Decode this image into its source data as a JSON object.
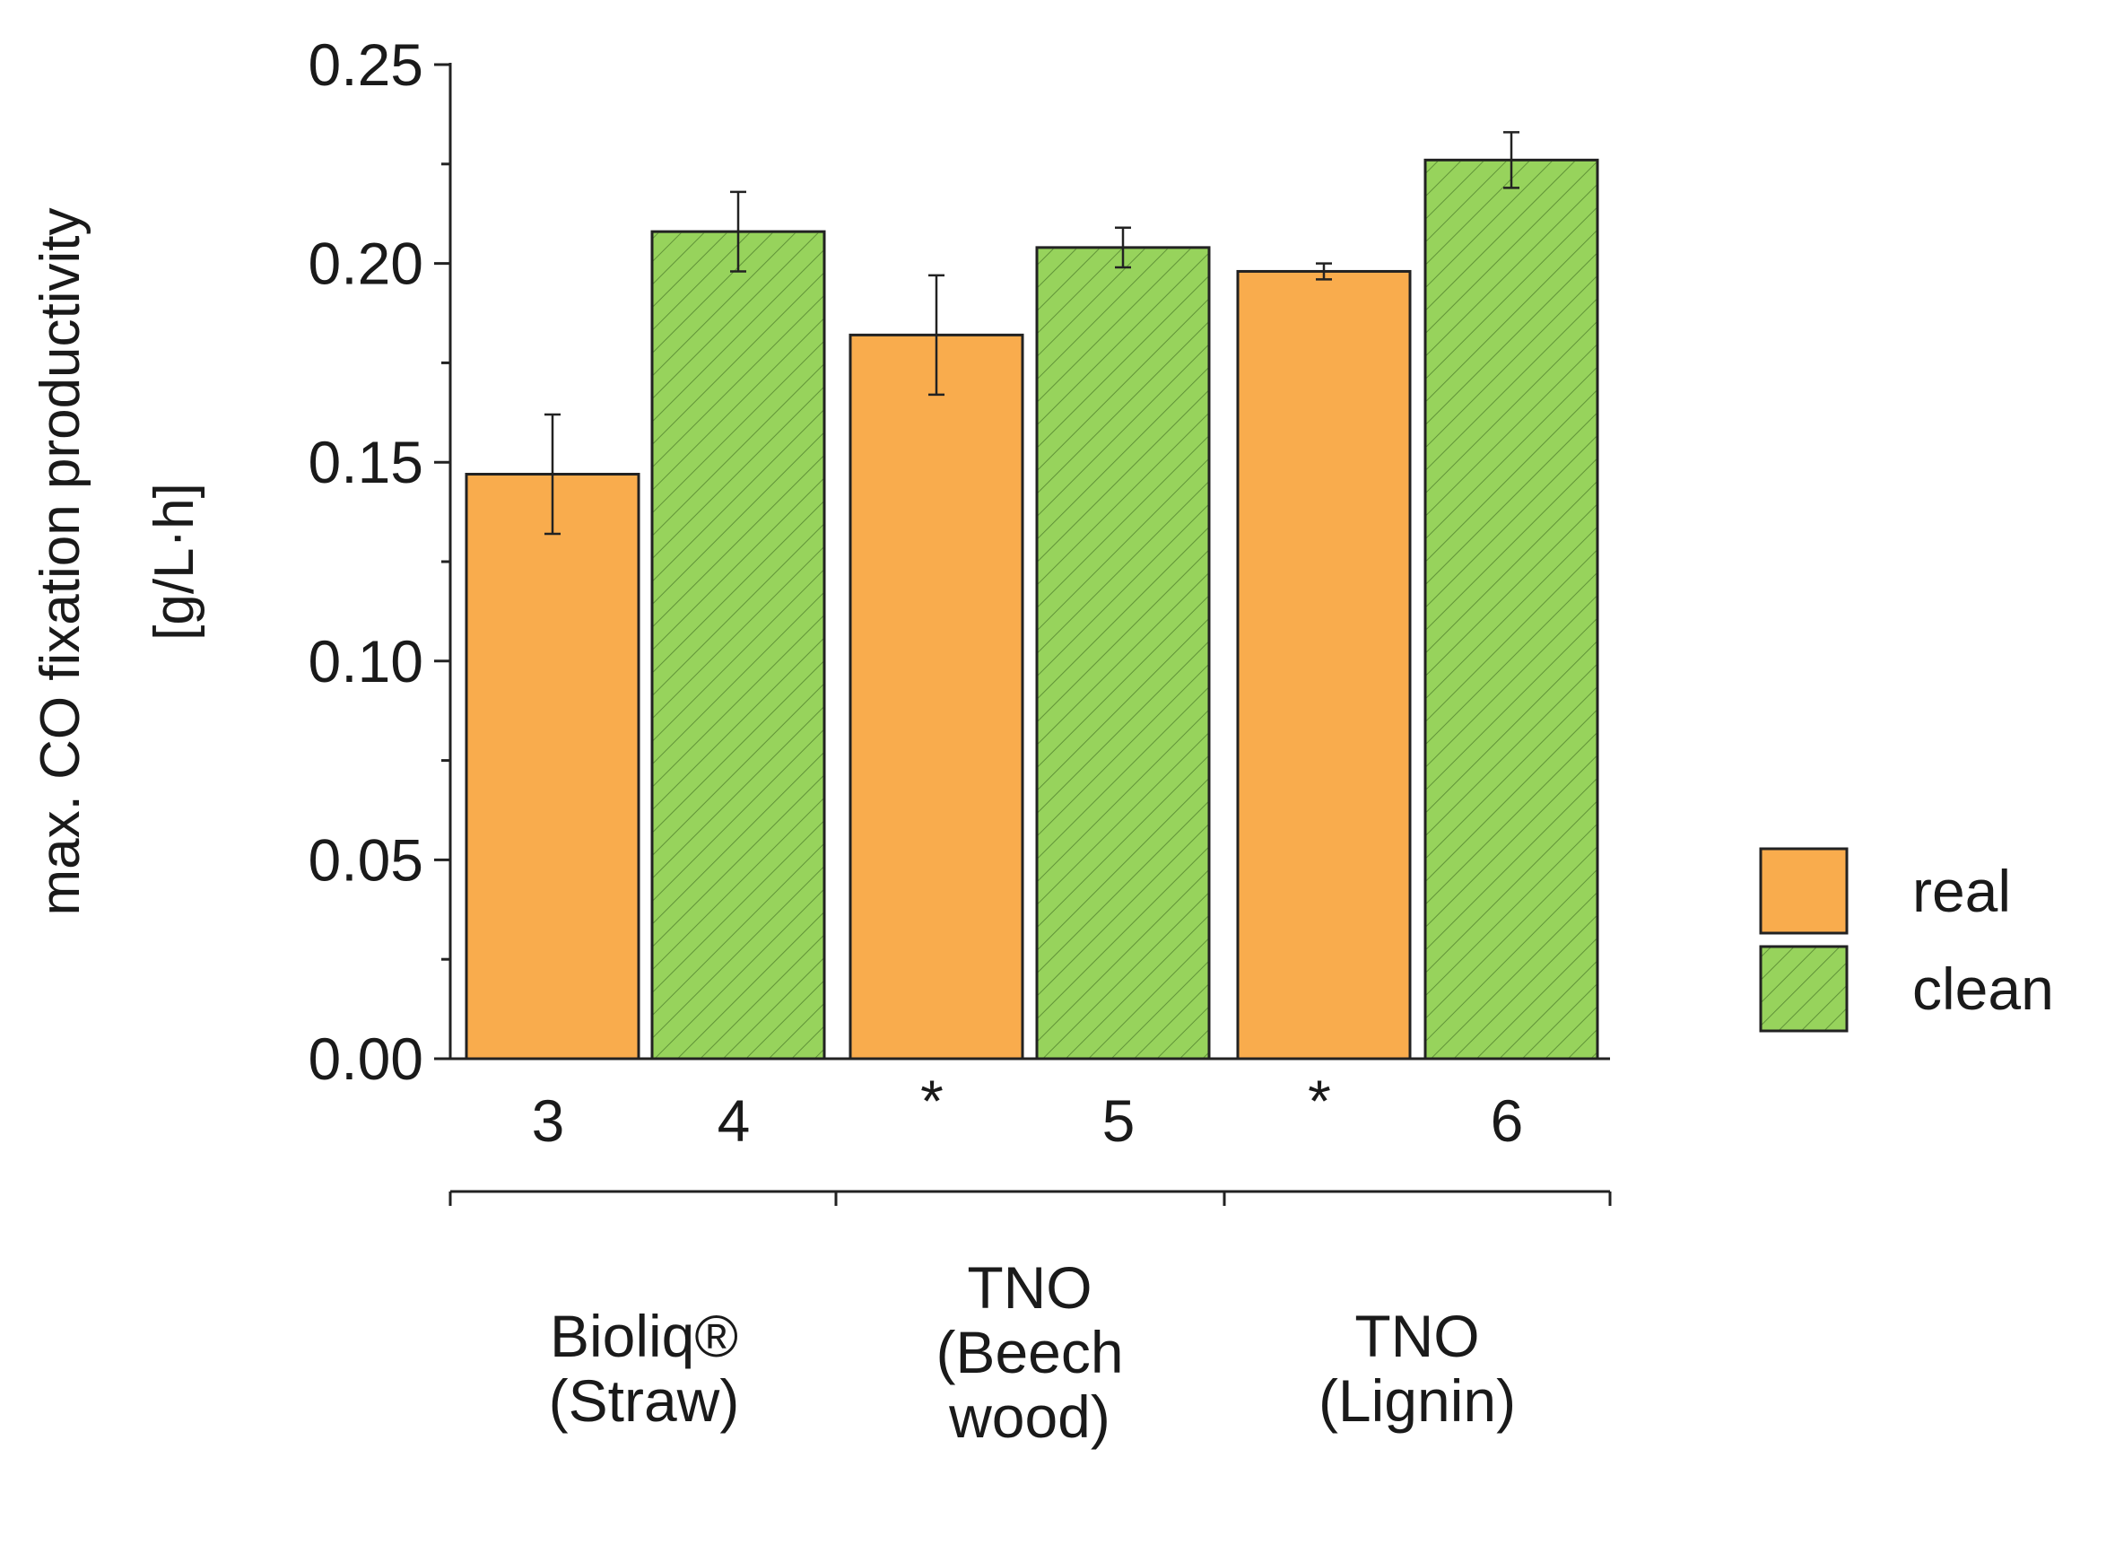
{
  "chart_data": {
    "type": "bar",
    "title": "",
    "ylabel_line1": "max. CO fixation productivity",
    "ylabel_line2": "[g/L·h]",
    "xlabel": "",
    "ylim": [
      0,
      0.25
    ],
    "yticks": [
      "0.00",
      "0.05",
      "0.10",
      "0.15",
      "0.20",
      "0.25"
    ],
    "ytick_values": [
      0,
      0.05,
      0.1,
      0.15,
      0.2,
      0.25
    ],
    "groups": [
      {
        "label_lines": [
          "Bioliq®",
          "(Straw)"
        ]
      },
      {
        "label_lines": [
          "TNO",
          "(Beech",
          "wood)"
        ]
      },
      {
        "label_lines": [
          "TNO",
          "(Lignin)"
        ]
      }
    ],
    "bars": [
      {
        "label": "3",
        "group": 0,
        "series": "real",
        "value": 0.147,
        "err": 0.015
      },
      {
        "label": "4",
        "group": 0,
        "series": "clean",
        "value": 0.208,
        "err": 0.01
      },
      {
        "label": "*",
        "group": 1,
        "series": "real",
        "value": 0.182,
        "err": 0.015
      },
      {
        "label": "5",
        "group": 1,
        "series": "clean",
        "value": 0.204,
        "err": 0.005
      },
      {
        "label": "*",
        "group": 2,
        "series": "real",
        "value": 0.198,
        "err": 0.002
      },
      {
        "label": "6",
        "group": 2,
        "series": "clean",
        "value": 0.226,
        "err": 0.007
      }
    ],
    "series": [
      {
        "name": "real",
        "color": "#F9AC4D",
        "hatched": false
      },
      {
        "name": "clean",
        "color": "#97D35C",
        "hatched": true
      }
    ],
    "legend_position": "right"
  }
}
